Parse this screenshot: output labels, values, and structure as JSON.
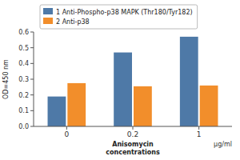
{
  "chart_data": {
    "type": "bar",
    "categories": [
      "0",
      "0.2",
      "1"
    ],
    "xlabel": "Anisomycin\nconcentrations",
    "ylabel": "OD=450 nm",
    "annotations": [
      "μg/ml"
    ],
    "series": [
      {
        "name": "1 Anti-Phospho-p38 MAPK (Thr180/Tyr182)",
        "values": [
          0.19,
          0.47,
          0.57
        ]
      },
      {
        "name": "2 Anti-p38",
        "values": [
          0.275,
          0.255,
          0.26
        ]
      }
    ],
    "ylim": [
      0,
      0.6
    ],
    "yticks": [
      {
        "value": 0.0,
        "label": "0.0"
      },
      0.1,
      0.2,
      0.3,
      0.4,
      0.5,
      0.6
    ],
    "grid": false,
    "legend": "top"
  }
}
